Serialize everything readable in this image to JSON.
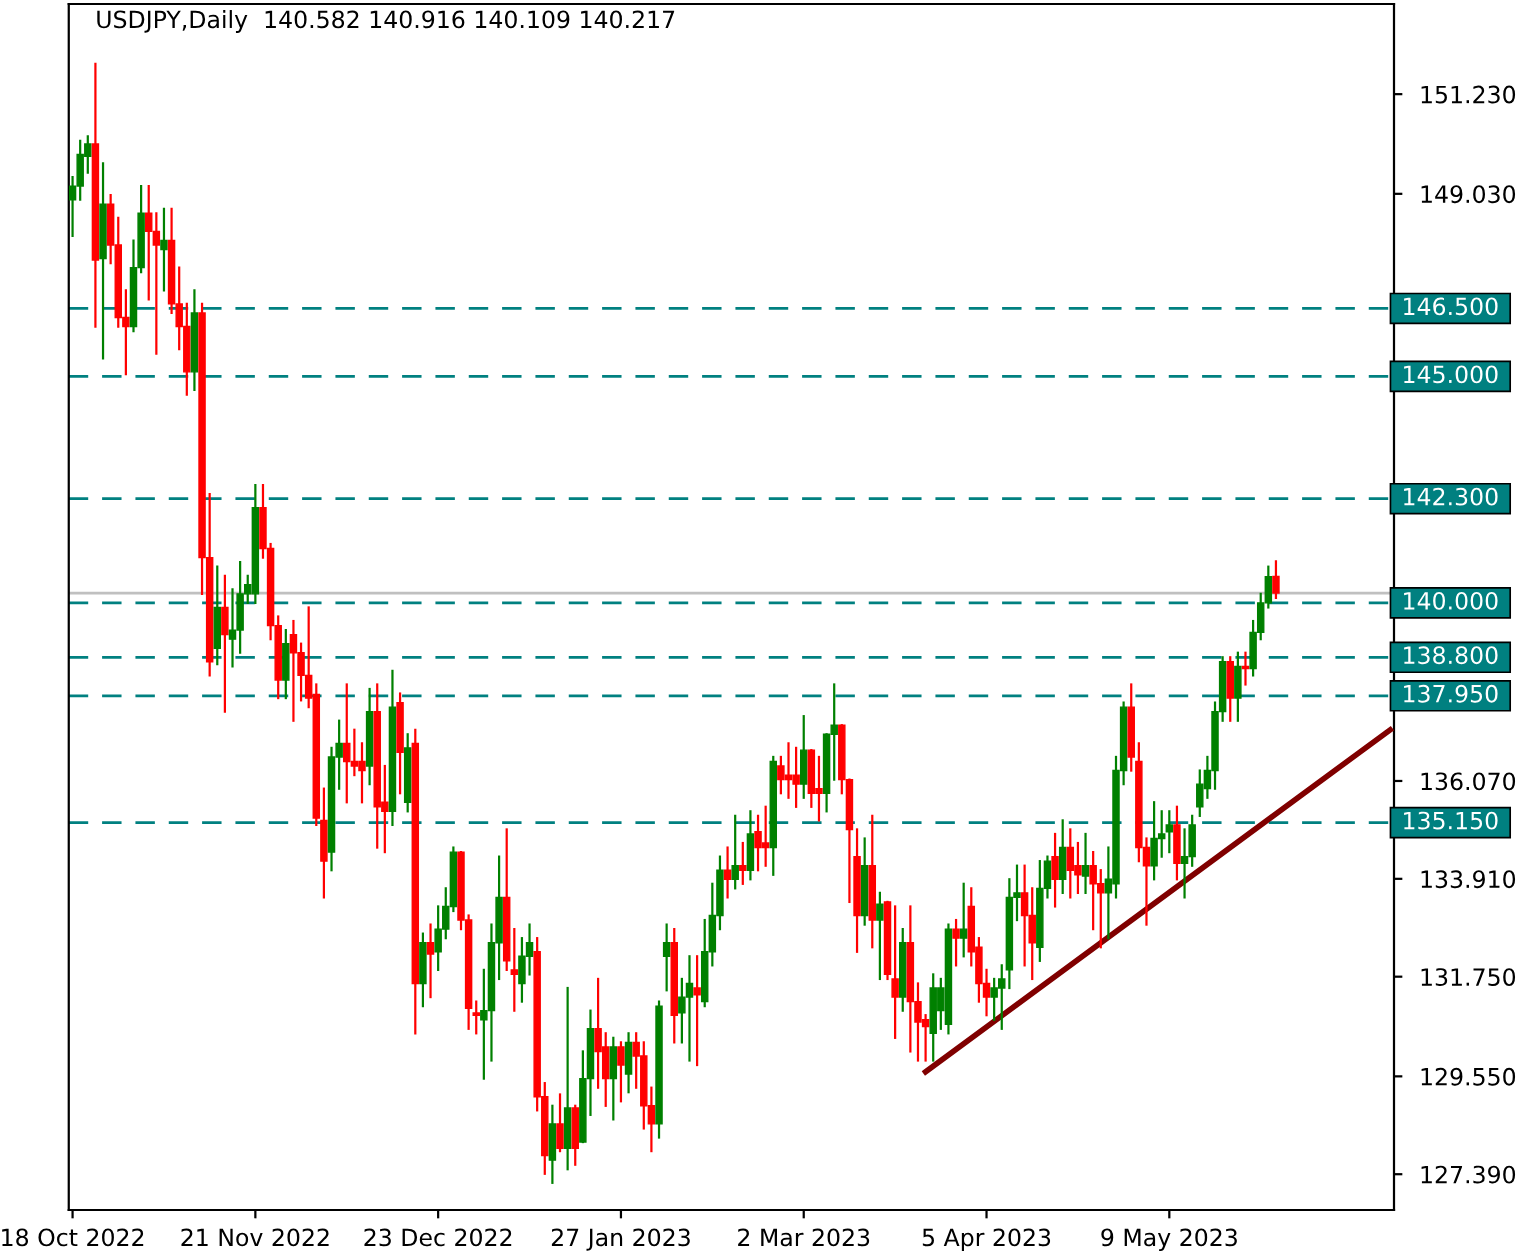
{
  "chart_data": {
    "type": "candlestick",
    "title": "USDJPY,Daily  140.582 140.916 140.109 140.217",
    "categories": [
      "18 Oct 2022",
      null,
      null,
      null,
      null,
      null,
      null,
      null,
      null,
      null,
      null,
      null,
      null,
      null,
      null,
      null,
      null,
      null,
      null,
      null,
      null,
      null,
      null,
      null,
      "21 Nov 2022",
      null,
      null,
      null,
      null,
      null,
      null,
      null,
      null,
      null,
      null,
      null,
      null,
      null,
      null,
      null,
      null,
      null,
      null,
      null,
      null,
      null,
      null,
      null,
      "23 Dec 2022",
      null,
      null,
      null,
      null,
      null,
      null,
      null,
      null,
      null,
      null,
      null,
      null,
      null,
      null,
      null,
      null,
      null,
      null,
      null,
      null,
      null,
      null,
      null,
      "27 Jan 2023",
      null,
      null,
      null,
      null,
      null,
      null,
      null,
      null,
      null,
      null,
      null,
      null,
      null,
      null,
      null,
      null,
      null,
      null,
      null,
      null,
      null,
      null,
      null,
      "2 Mar 2023",
      null,
      null,
      null,
      null,
      null,
      null,
      null,
      null,
      null,
      null,
      null,
      null,
      null,
      null,
      null,
      null,
      null,
      null,
      null,
      null,
      null,
      null,
      null,
      "5 Apr 2023",
      null,
      null,
      null,
      null,
      null,
      null,
      null,
      null,
      null,
      null,
      null,
      null,
      null,
      null,
      null,
      null,
      null,
      null,
      null,
      null,
      null,
      null,
      null,
      "9 May 2023",
      null,
      null,
      null,
      null,
      null,
      null,
      null,
      null,
      null,
      null,
      null,
      null,
      null,
      null,
      null,
      null,
      null,
      null,
      null,
      null,
      null,
      null,
      null,
      null,
      null,
      null,
      null,
      null,
      null
    ],
    "colors": [
      "#008000",
      "#008000",
      "#008000",
      "#ff0000",
      "#008000",
      "#ff0000",
      "#ff0000",
      "#ff0000",
      "#008000",
      "#008000",
      "#ff0000",
      "#ff0000",
      "#008000",
      "#ff0000",
      "#ff0000",
      "#ff0000",
      "#008000",
      "#ff0000",
      "#ff0000",
      "#008000",
      "#ff0000",
      "#008000",
      "#008000",
      "#008000",
      "#008000",
      "#ff0000",
      "#ff0000",
      "#ff0000",
      "#008000",
      "#ff0000",
      "#ff0000",
      "#ff0000",
      "#ff0000",
      "#ff0000",
      "#008000",
      "#008000",
      "#ff0000",
      "#ff0000",
      "#ff0000",
      "#008000",
      "#ff0000",
      "#ff0000",
      "#008000",
      "#ff0000",
      "#008000",
      "#ff0000",
      "#008000",
      "#ff0000",
      "#008000",
      "#008000",
      "#008000",
      "#ff0000",
      "#ff0000",
      "#ff0000",
      "#008000",
      "#008000",
      "#008000",
      "#ff0000",
      "#ff0000",
      "#008000",
      "#008000",
      "#ff0000",
      "#ff0000",
      "#008000",
      "#ff0000",
      "#008000",
      "#ff0000",
      "#008000",
      "#008000",
      "#ff0000",
      "#ff0000",
      "#008000",
      "#ff0000",
      "#008000",
      "#ff0000",
      "#ff0000",
      "#ff0000",
      "#008000",
      "#008000",
      "#ff0000",
      "#008000",
      "#008000",
      "#ff0000",
      "#008000",
      "#008000",
      "#008000",
      "#ff0000",
      "#008000",
      "#ff0000",
      "#008000",
      "#ff0000",
      "#ff0000",
      "#008000",
      "#ff0000",
      "#ff0000",
      "#ff0000",
      "#008000",
      "#ff0000",
      "#ff0000",
      "#008000",
      "#008000",
      "#ff0000",
      "#ff0000",
      "#ff0000",
      "#008000",
      "#ff0000",
      "#008000",
      "#ff0000",
      "#ff0000",
      "#008000",
      "#ff0000",
      "#ff0000",
      "#ff0000",
      "#008000",
      "#008000",
      "#008000",
      "#ff0000",
      "#008000",
      "#ff0000",
      "#ff0000",
      "#ff0000",
      "#008000",
      "#008000",
      "#008000",
      "#008000",
      "#ff0000",
      "#ff0000",
      "#008000",
      "#008000",
      "#ff0000",
      "#008000",
      "#ff0000",
      "#ff0000",
      "#008000",
      "#ff0000",
      "#ff0000",
      "#008000",
      "#008000",
      "#008000",
      "#ff0000",
      "#ff0000",
      "#ff0000",
      "#008000",
      "#008000",
      "#008000",
      "#ff0000",
      "#008000",
      "#008000",
      "#008000",
      "#008000",
      "#008000",
      "#008000",
      "#ff0000",
      "#008000",
      "#ff0000",
      "#008000",
      "#008000",
      "#008000",
      "#ff0000",
      null,
      null,
      null,
      null,
      null,
      null,
      null,
      null,
      null,
      null,
      null,
      null,
      null,
      null,
      null
    ],
    "ohlc": [
      [
        148.9,
        149.4,
        148.1,
        149.2
      ],
      [
        149.2,
        150.2,
        148.9,
        149.9
      ],
      [
        149.86,
        150.3,
        149.5,
        150.13
      ],
      [
        150.13,
        151.9,
        146.1,
        147.57
      ],
      [
        147.6,
        149.7,
        145.4,
        148.8
      ],
      [
        148.8,
        149.0,
        147.5,
        147.9
      ],
      [
        147.9,
        148.5,
        146.1,
        146.3
      ],
      [
        146.3,
        146.9,
        145.05,
        146.1
      ],
      [
        146.1,
        148.0,
        146.0,
        147.4
      ],
      [
        147.4,
        149.2,
        147.3,
        148.6
      ],
      [
        148.6,
        149.2,
        146.7,
        148.2
      ],
      [
        148.2,
        148.6,
        145.5,
        147.9
      ],
      [
        147.8,
        148.7,
        146.9,
        148.0
      ],
      [
        148.0,
        148.7,
        146.4,
        146.6
      ],
      [
        146.6,
        147.4,
        145.6,
        146.1
      ],
      [
        146.1,
        146.6,
        144.6,
        145.1
      ],
      [
        145.1,
        146.9,
        144.7,
        146.4
      ],
      [
        146.4,
        146.6,
        140.2,
        141.0
      ],
      [
        141.0,
        142.4,
        138.4,
        138.7
      ],
      [
        139.0,
        140.8,
        138.65,
        139.9
      ],
      [
        139.9,
        140.6,
        137.6,
        139.3
      ],
      [
        139.2,
        140.3,
        138.6,
        139.4
      ],
      [
        139.4,
        140.9,
        138.9,
        140.2
      ],
      [
        140.2,
        140.6,
        140.0,
        140.4
      ],
      [
        140.2,
        142.6,
        140.0,
        142.1
      ],
      [
        142.1,
        142.6,
        141.0,
        141.2
      ],
      [
        141.2,
        141.3,
        139.2,
        139.5
      ],
      [
        139.5,
        139.7,
        137.9,
        138.3
      ],
      [
        138.3,
        139.4,
        137.9,
        139.1
      ],
      [
        139.3,
        139.6,
        137.4,
        138.9
      ],
      [
        138.9,
        139.1,
        137.85,
        138.4
      ],
      [
        138.4,
        139.9,
        137.7,
        137.9
      ],
      [
        137.98,
        138.2,
        135.1,
        135.25
      ],
      [
        135.2,
        135.9,
        133.5,
        134.3
      ],
      [
        134.5,
        136.8,
        134.1,
        136.6
      ],
      [
        136.6,
        137.4,
        135.9,
        136.9
      ],
      [
        136.9,
        138.2,
        135.6,
        136.5
      ],
      [
        136.5,
        137.2,
        136.2,
        136.4
      ],
      [
        136.5,
        136.9,
        135.6,
        136.3
      ],
      [
        136.4,
        138.1,
        136.0,
        137.6
      ],
      [
        137.6,
        138.2,
        134.6,
        135.5
      ],
      [
        135.6,
        136.4,
        134.5,
        135.4
      ],
      [
        135.4,
        138.5,
        135.1,
        137.7
      ],
      [
        137.8,
        138.0,
        135.8,
        136.7
      ],
      [
        135.6,
        137.1,
        135.4,
        136.8
      ],
      [
        136.9,
        137.2,
        130.5,
        131.6
      ],
      [
        131.6,
        132.7,
        131.1,
        132.5
      ],
      [
        132.5,
        132.9,
        131.3,
        132.25
      ],
      [
        132.3,
        133.3,
        131.9,
        132.8
      ],
      [
        132.8,
        133.7,
        132.6,
        133.3
      ],
      [
        133.3,
        134.6,
        133.2,
        134.5
      ],
      [
        134.5,
        134.5,
        132.8,
        133.0
      ],
      [
        133.0,
        133.1,
        130.6,
        131.05
      ],
      [
        130.95,
        131.2,
        130.5,
        130.9
      ],
      [
        130.8,
        131.9,
        129.5,
        131.0
      ],
      [
        131.0,
        132.9,
        129.9,
        132.5
      ],
      [
        132.5,
        134.4,
        131.7,
        133.5
      ],
      [
        133.5,
        135.0,
        131.9,
        132.1
      ],
      [
        131.9,
        132.8,
        131.0,
        131.8
      ],
      [
        131.6,
        132.6,
        131.2,
        132.2
      ],
      [
        132.2,
        132.9,
        131.8,
        132.5
      ],
      [
        132.3,
        132.6,
        128.8,
        129.1
      ],
      [
        129.1,
        129.4,
        127.4,
        127.8
      ],
      [
        127.7,
        128.9,
        127.2,
        128.5
      ],
      [
        128.5,
        129.15,
        127.9,
        127.96
      ],
      [
        127.96,
        131.5,
        127.5,
        128.85
      ],
      [
        128.85,
        128.9,
        127.6,
        127.96
      ],
      [
        128.1,
        130.1,
        128.1,
        129.5
      ],
      [
        129.5,
        131.0,
        128.7,
        130.6
      ],
      [
        130.6,
        131.7,
        129.3,
        130.1
      ],
      [
        130.2,
        130.5,
        128.9,
        129.5
      ],
      [
        129.5,
        130.4,
        128.6,
        130.2
      ],
      [
        130.2,
        130.3,
        129.0,
        129.8
      ],
      [
        129.6,
        130.5,
        129.2,
        130.3
      ],
      [
        130.3,
        130.5,
        129.3,
        130.0
      ],
      [
        130.0,
        130.3,
        128.4,
        128.9
      ],
      [
        128.9,
        129.3,
        127.9,
        128.5
      ],
      [
        128.5,
        131.2,
        128.2,
        131.1
      ],
      [
        132.2,
        132.9,
        131.45,
        132.5
      ],
      [
        132.5,
        132.8,
        130.3,
        130.9
      ],
      [
        130.95,
        131.7,
        130.3,
        131.3
      ],
      [
        131.3,
        132.2,
        129.9,
        131.6
      ],
      [
        131.5,
        132.2,
        129.8,
        131.35
      ],
      [
        131.2,
        133.0,
        131.1,
        132.3
      ],
      [
        132.3,
        133.8,
        132.0,
        133.1
      ],
      [
        133.1,
        134.4,
        132.8,
        134.1
      ],
      [
        134.1,
        134.6,
        133.5,
        133.9
      ],
      [
        133.9,
        135.3,
        133.7,
        134.2
      ],
      [
        134.2,
        134.7,
        133.8,
        134.1
      ],
      [
        134.1,
        135.4,
        133.9,
        134.9
      ],
      [
        134.95,
        135.3,
        134.1,
        134.6
      ],
      [
        134.7,
        135.5,
        134.2,
        134.6
      ],
      [
        134.6,
        136.6,
        134.0,
        136.5
      ],
      [
        136.4,
        136.6,
        135.8,
        136.1
      ],
      [
        136.2,
        136.9,
        135.7,
        136.1
      ],
      [
        136.2,
        136.8,
        135.5,
        136.0
      ],
      [
        136.0,
        137.5,
        135.7,
        136.75
      ],
      [
        136.75,
        136.75,
        135.5,
        135.8
      ],
      [
        135.9,
        136.6,
        135.2,
        135.8
      ],
      [
        135.8,
        137.1,
        135.4,
        137.1
      ],
      [
        137.1,
        138.2,
        136.1,
        137.3
      ],
      [
        137.3,
        137.3,
        135.8,
        136.1
      ],
      [
        136.1,
        136.1,
        133.4,
        135.0
      ],
      [
        134.4,
        135.0,
        132.3,
        133.1
      ],
      [
        133.1,
        134.8,
        132.9,
        134.2
      ],
      [
        134.2,
        135.3,
        132.4,
        133.0
      ],
      [
        133.0,
        133.6,
        131.7,
        133.35
      ],
      [
        133.4,
        133.4,
        131.7,
        131.8
      ],
      [
        131.7,
        133.3,
        130.4,
        131.3
      ],
      [
        131.3,
        132.8,
        131.0,
        132.5
      ],
      [
        132.5,
        133.3,
        130.1,
        131.2
      ],
      [
        131.2,
        131.6,
        129.9,
        130.75
      ],
      [
        130.8,
        130.9,
        129.9,
        130.65
      ],
      [
        130.5,
        131.8,
        129.9,
        131.5
      ],
      [
        131.0,
        131.7,
        130.6,
        131.5
      ],
      [
        130.7,
        132.9,
        130.5,
        132.8
      ],
      [
        132.8,
        133.0,
        132.0,
        132.6
      ],
      [
        132.6,
        133.8,
        132.2,
        132.8
      ],
      [
        133.3,
        133.7,
        132.0,
        132.3
      ],
      [
        132.4,
        132.6,
        131.2,
        131.6
      ],
      [
        131.6,
        131.9,
        130.9,
        131.3
      ],
      [
        131.3,
        131.7,
        130.8,
        131.5
      ],
      [
        131.5,
        132.0,
        130.6,
        131.7
      ],
      [
        131.9,
        133.9,
        131.5,
        133.5
      ],
      [
        133.5,
        134.2,
        133.0,
        133.6
      ],
      [
        133.6,
        134.2,
        132.0,
        133.1
      ],
      [
        133.1,
        133.7,
        131.7,
        132.5
      ],
      [
        132.4,
        134.3,
        132.1,
        133.7
      ],
      [
        133.7,
        134.4,
        133.5,
        134.3
      ],
      [
        134.4,
        134.9,
        133.3,
        133.9
      ],
      [
        133.9,
        135.2,
        133.6,
        134.6
      ],
      [
        134.6,
        135.0,
        133.5,
        134.1
      ],
      [
        134.2,
        134.7,
        133.6,
        134.0
      ],
      [
        133.97,
        134.9,
        133.6,
        134.2
      ],
      [
        134.2,
        134.5,
        132.8,
        133.8
      ],
      [
        133.8,
        134.1,
        132.4,
        133.6
      ],
      [
        133.6,
        134.6,
        132.6,
        133.9
      ],
      [
        133.8,
        136.6,
        133.5,
        136.3
      ],
      [
        136.3,
        137.8,
        136.0,
        137.7
      ],
      [
        137.7,
        138.2,
        136.3,
        136.6
      ],
      [
        136.5,
        136.9,
        134.3,
        134.6
      ],
      [
        134.6,
        134.8,
        132.9,
        134.2
      ],
      [
        134.2,
        135.6,
        133.9,
        134.8
      ],
      [
        134.8,
        135.4,
        134.4,
        134.9
      ],
      [
        134.95,
        135.4,
        134.5,
        135.1
      ],
      [
        135.1,
        135.5,
        133.9,
        134.25
      ],
      [
        134.25,
        135.0,
        133.5,
        134.4
      ],
      [
        134.4,
        135.3,
        134.2,
        135.1
      ],
      [
        135.5,
        136.3,
        135.3,
        136.0
      ],
      [
        135.9,
        136.6,
        135.7,
        136.3
      ],
      [
        136.3,
        137.8,
        135.9,
        137.6
      ],
      [
        137.6,
        138.8,
        137.4,
        138.7
      ],
      [
        138.7,
        138.8,
        137.4,
        137.9
      ],
      [
        137.9,
        138.9,
        137.4,
        138.6
      ],
      [
        138.6,
        138.9,
        138.2,
        138.55
      ],
      [
        138.55,
        139.6,
        138.4,
        139.35
      ],
      [
        139.35,
        140.2,
        139.2,
        140.0
      ],
      [
        140.0,
        140.8,
        139.9,
        140.58
      ],
      [
        140.582,
        140.916,
        140.109,
        140.217
      ],
      null,
      null,
      null,
      null,
      null,
      null,
      null,
      null,
      null,
      null,
      null,
      null,
      null,
      null,
      null
    ],
    "series": [
      {
        "type": "line",
        "color": "#800000",
        "values": [
          null,
          null,
          null,
          null,
          null,
          null,
          null,
          null,
          null,
          null,
          null,
          null,
          null,
          null,
          null,
          null,
          null,
          null,
          null,
          null,
          null,
          null,
          null,
          null,
          null,
          null,
          null,
          null,
          null,
          null,
          null,
          null,
          null,
          null,
          null,
          null,
          null,
          null,
          null,
          null,
          null,
          null,
          null,
          null,
          null,
          null,
          null,
          null,
          null,
          null,
          null,
          null,
          null,
          null,
          null,
          null,
          null,
          null,
          null,
          null,
          null,
          null,
          null,
          null,
          null,
          null,
          null,
          null,
          null,
          null,
          null,
          null,
          null,
          null,
          null,
          null,
          null,
          null,
          null,
          null,
          null,
          null,
          null,
          null,
          null,
          null,
          null,
          null,
          null,
          null,
          null,
          null,
          null,
          null,
          null,
          null,
          null,
          null,
          null,
          null,
          null,
          null,
          null,
          null,
          null,
          null,
          null,
          null,
          null,
          null,
          null,
          null,
          129.65,
          null,
          null,
          null,
          null,
          null,
          null,
          null,
          null,
          null,
          null,
          null,
          null,
          null,
          null,
          null,
          null,
          null,
          null,
          null,
          null,
          null,
          null,
          null,
          null,
          null,
          null,
          null,
          null,
          null,
          null,
          null,
          null,
          null,
          null,
          null,
          null,
          null,
          null,
          null,
          null,
          null,
          null,
          null,
          null,
          null,
          null,
          null,
          null,
          null,
          null,
          null,
          null,
          null,
          null,
          null,
          null,
          null,
          null,
          null,
          null,
          137.2
        ]
      }
    ],
    "ylim": [
      126.6,
      153.22
    ],
    "yticks": [
      {
        "value": 151.23,
        "label": "151.230"
      },
      {
        "value": 149.03,
        "label": "149.030"
      },
      {
        "value": 136.07,
        "label": "136.070"
      },
      {
        "value": 133.91,
        "label": "133.910"
      },
      {
        "value": 131.75,
        "label": "131.750"
      },
      {
        "value": 129.55,
        "label": "129.550"
      },
      {
        "value": 127.39,
        "label": "127.390"
      }
    ],
    "ref_lines": [
      {
        "axis": "y",
        "value": 146.5,
        "label": "146.500",
        "color": "#008080",
        "line_style": "dashed"
      },
      {
        "axis": "y",
        "value": 145.0,
        "label": "145.000",
        "color": "#008080",
        "line_style": "dashed"
      },
      {
        "axis": "y",
        "value": 142.3,
        "label": "142.300",
        "color": "#008080",
        "line_style": "dashed"
      },
      {
        "axis": "y",
        "value": 140.0,
        "label": "140.000",
        "color": "#008080",
        "line_style": "dashed"
      },
      {
        "axis": "y",
        "value": 138.8,
        "label": "138.800",
        "color": "#008080",
        "line_style": "dashed"
      },
      {
        "axis": "y",
        "value": 137.95,
        "label": "137.950",
        "color": "#008080",
        "line_style": "dashed"
      },
      {
        "axis": "y",
        "value": 135.15,
        "label": "135.150",
        "color": "#008080",
        "line_style": "dashed"
      },
      {
        "axis": "y",
        "value": 140.217,
        "color": "#c0c0c0",
        "line_style": "solid"
      }
    ],
    "grid": false,
    "legend": false
  }
}
